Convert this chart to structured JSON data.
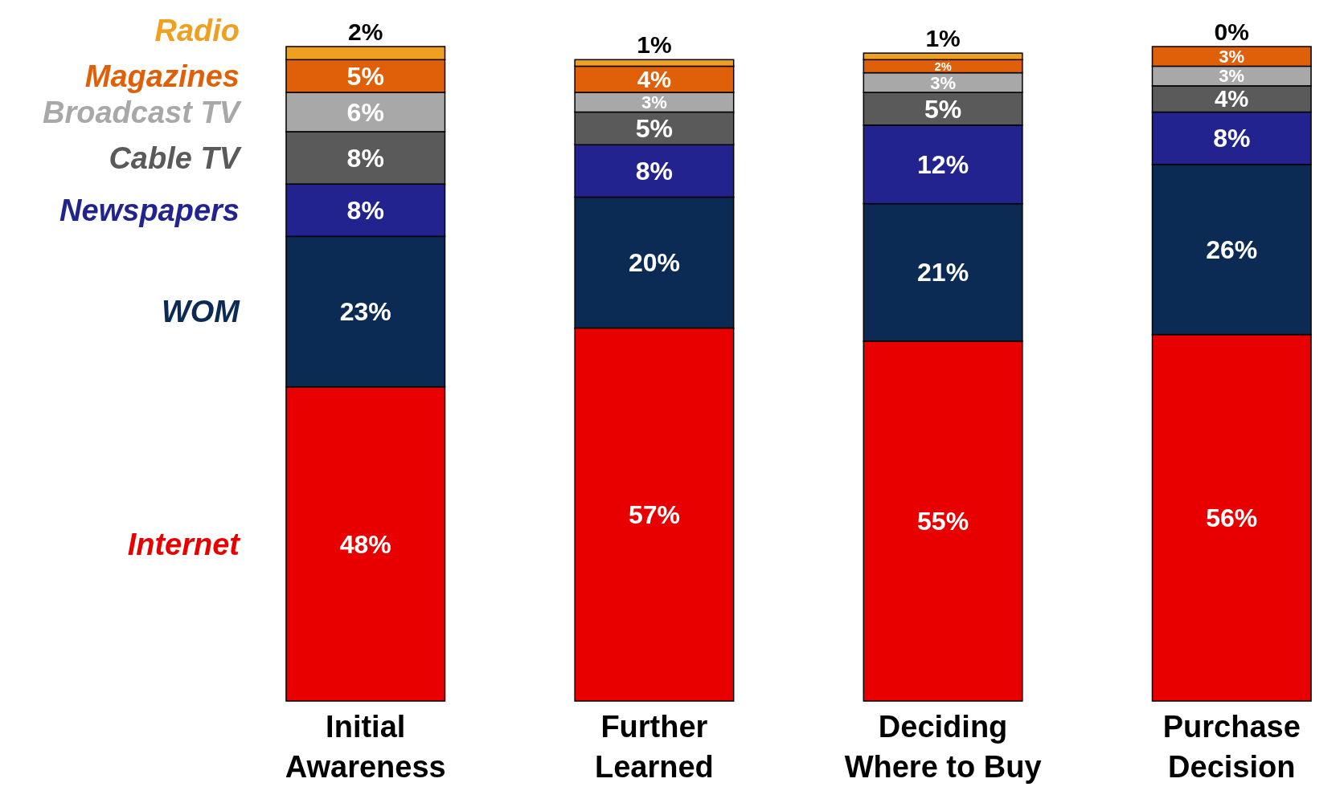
{
  "chart_data": {
    "type": "bar",
    "stacked": true,
    "legend": "left",
    "tick_labels": "x",
    "categories": [
      "Initial Awareness",
      "Further Learned",
      "Deciding Where to Buy",
      "Purchase Decision"
    ],
    "series": [
      {
        "name": "Internet",
        "color": "#e80000",
        "values": [
          48,
          57,
          55,
          56
        ],
        "value_labels": [
          "48%",
          "57%",
          "55%",
          "56%"
        ]
      },
      {
        "name": "WOM",
        "color": "#0b2b55",
        "values": [
          23,
          20,
          21,
          26
        ],
        "value_labels": [
          "23%",
          "20%",
          "21%",
          "26%"
        ]
      },
      {
        "name": "Newspapers",
        "color": "#23238f",
        "values": [
          8,
          8,
          12,
          8
        ],
        "value_labels": [
          "8%",
          "8%",
          "12%",
          "8%"
        ]
      },
      {
        "name": "Cable TV",
        "color": "#5a5a5a",
        "values": [
          8,
          5,
          5,
          4
        ],
        "value_labels": [
          "8%",
          "5%",
          "5%",
          "4%"
        ]
      },
      {
        "name": "Broadcast TV",
        "color": "#a8a8a8",
        "values": [
          6,
          3,
          3,
          3
        ],
        "value_labels": [
          "6%",
          "3%",
          "3%",
          "3%"
        ]
      },
      {
        "name": "Magazines",
        "color": "#e0600a",
        "values": [
          5,
          4,
          2,
          3
        ],
        "value_labels": [
          "5%",
          "4%",
          "2%",
          "3%"
        ]
      },
      {
        "name": "Radio",
        "color": "#f0a020",
        "values": [
          2,
          1,
          1,
          0
        ],
        "value_labels": [
          "2%",
          "1%",
          "1%",
          "0%"
        ]
      }
    ]
  }
}
